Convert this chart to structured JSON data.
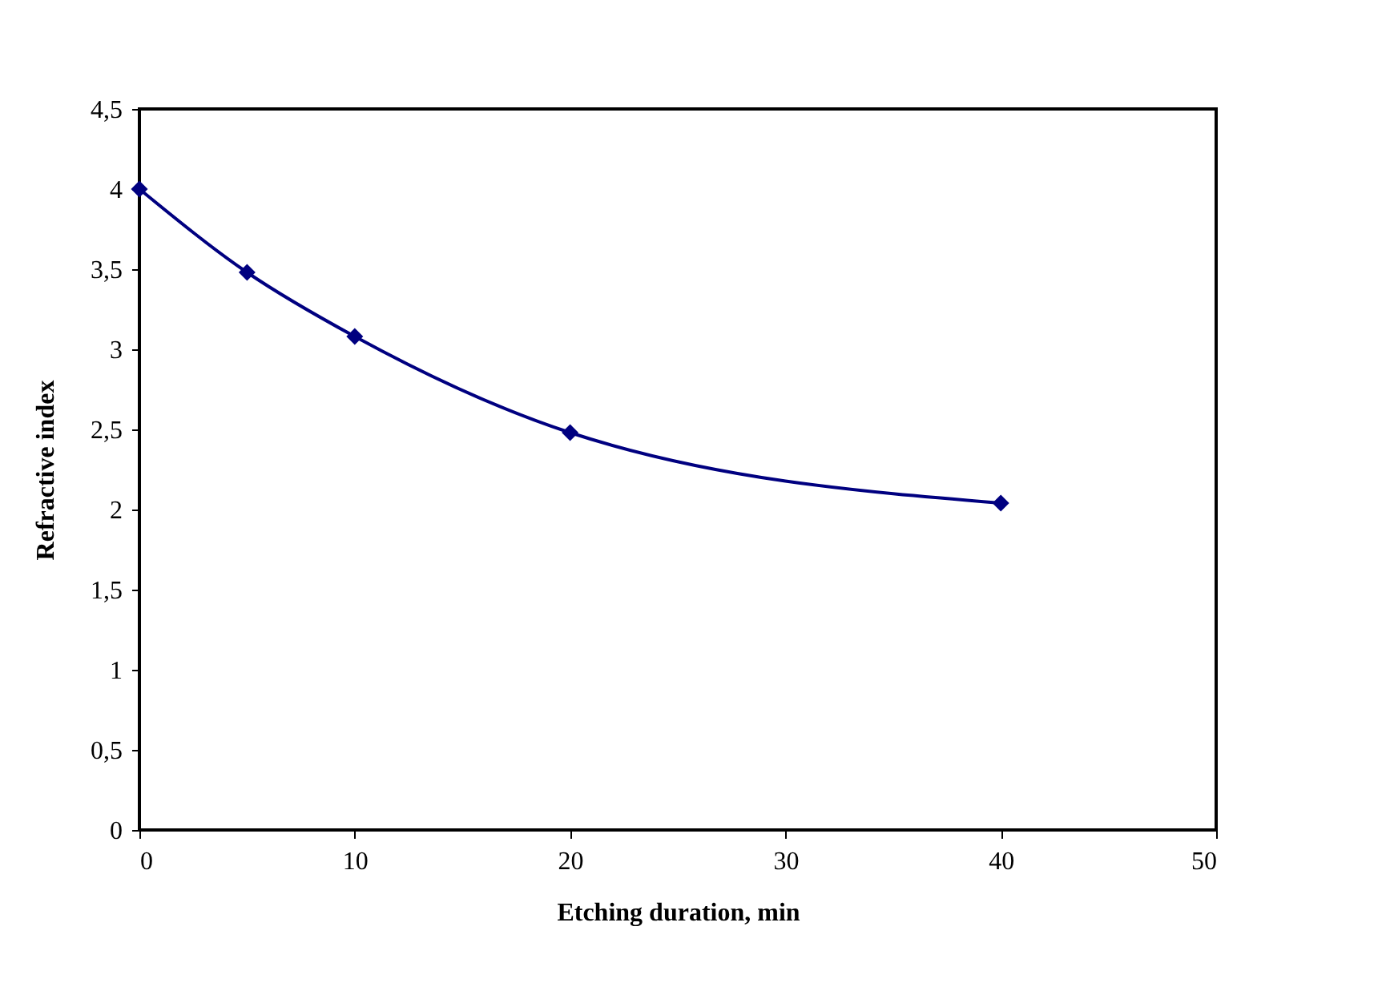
{
  "chart_data": {
    "type": "line",
    "xlabel": "Etching duration, min",
    "ylabel": "Refractive index",
    "x": [
      0,
      5,
      10,
      20,
      40
    ],
    "series": [
      {
        "color": "#000080",
        "values": [
          4.0,
          3.48,
          3.08,
          2.48,
          2.04
        ]
      }
    ],
    "xlim": [
      0,
      50
    ],
    "xticks": [
      0,
      10,
      20,
      30,
      40,
      50
    ],
    "ylim": [
      0,
      4.5
    ],
    "yticks": [
      0,
      {
        "value": 0.5,
        "label": "0,5"
      },
      1,
      {
        "value": 1.5,
        "label": "1,5"
      },
      2,
      {
        "value": 2.5,
        "label": "2,5"
      },
      3,
      {
        "value": 3.5,
        "label": "3,5"
      },
      4,
      {
        "value": 4.5,
        "label": "4,5"
      }
    ],
    "marker": "diamond",
    "line_style": "solid",
    "grid": false
  }
}
